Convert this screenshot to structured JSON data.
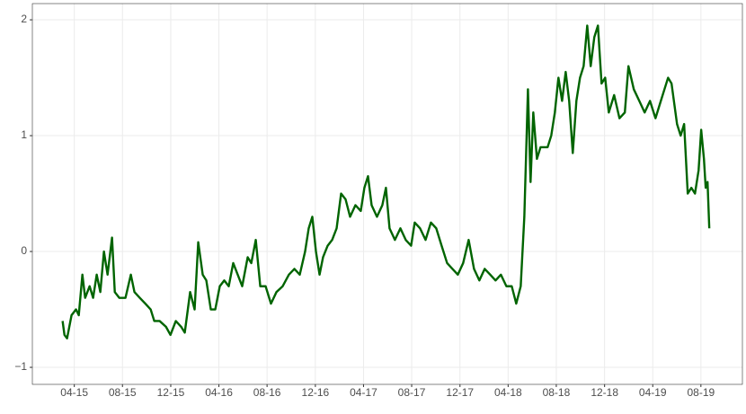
{
  "chart_data": {
    "type": "line",
    "x": [
      2015.169,
      2015.182,
      2015.2,
      2015.231,
      2015.262,
      2015.281,
      2015.306,
      2015.325,
      2015.356,
      2015.38,
      2015.405,
      2015.43,
      2015.455,
      2015.48,
      2015.511,
      2015.53,
      2015.561,
      2015.604,
      2015.641,
      2015.666,
      2015.703,
      2015.741,
      2015.778,
      2015.803,
      2015.84,
      2015.884,
      2015.915,
      2015.952,
      2015.989,
      2016.014,
      2016.051,
      2016.082,
      2016.107,
      2016.138,
      2016.163,
      2016.194,
      2016.225,
      2016.256,
      2016.287,
      2016.318,
      2016.349,
      2016.38,
      2016.411,
      2016.449,
      2016.474,
      2016.505,
      2016.536,
      2016.573,
      2016.61,
      2016.648,
      2016.691,
      2016.734,
      2016.772,
      2016.809,
      2016.846,
      2016.871,
      2016.896,
      2016.921,
      2016.946,
      2016.97,
      2017.002,
      2017.033,
      2017.064,
      2017.095,
      2017.126,
      2017.157,
      2017.194,
      2017.231,
      2017.256,
      2017.281,
      2017.306,
      2017.343,
      2017.38,
      2017.405,
      2017.43,
      2017.467,
      2017.505,
      2017.542,
      2017.579,
      2017.604,
      2017.641,
      2017.679,
      2017.716,
      2017.753,
      2017.79,
      2017.828,
      2017.865,
      2017.902,
      2017.939,
      2017.977,
      2018.014,
      2018.051,
      2018.088,
      2018.126,
      2018.163,
      2018.2,
      2018.238,
      2018.275,
      2018.306,
      2018.337,
      2018.362,
      2018.387,
      2018.405,
      2018.424,
      2018.449,
      2018.474,
      2018.498,
      2018.523,
      2018.548,
      2018.573,
      2018.598,
      2018.623,
      2018.648,
      2018.672,
      2018.697,
      2018.722,
      2018.747,
      2018.772,
      2018.797,
      2018.821,
      2018.846,
      2018.871,
      2018.896,
      2018.921,
      2018.946,
      2018.983,
      2019.02,
      2019.057,
      2019.082,
      2019.119,
      2019.157,
      2019.194,
      2019.231,
      2019.269,
      2019.306,
      2019.331,
      2019.356,
      2019.38,
      2019.418,
      2019.443,
      2019.467,
      2019.492,
      2019.517,
      2019.542,
      2019.567,
      2019.585,
      2019.604,
      2019.616,
      2019.629,
      2019.641
    ],
    "series": [
      {
        "color": "#006400",
        "values": [
          -0.6,
          -0.72,
          -0.75,
          -0.55,
          -0.5,
          -0.55,
          -0.2,
          -0.4,
          -0.3,
          -0.4,
          -0.2,
          -0.35,
          0.0,
          -0.2,
          0.12,
          -0.35,
          -0.4,
          -0.4,
          -0.2,
          -0.35,
          -0.4,
          -0.45,
          -0.5,
          -0.6,
          -0.6,
          -0.65,
          -0.72,
          -0.6,
          -0.65,
          -0.7,
          -0.35,
          -0.5,
          0.08,
          -0.2,
          -0.25,
          -0.5,
          -0.5,
          -0.3,
          -0.25,
          -0.3,
          -0.1,
          -0.2,
          -0.3,
          -0.05,
          -0.1,
          0.1,
          -0.3,
          -0.3,
          -0.45,
          -0.35,
          -0.3,
          -0.2,
          -0.15,
          -0.2,
          0.0,
          0.2,
          0.3,
          0.0,
          -0.2,
          -0.05,
          0.05,
          0.1,
          0.2,
          0.5,
          0.45,
          0.3,
          0.4,
          0.35,
          0.55,
          0.65,
          0.4,
          0.3,
          0.4,
          0.55,
          0.2,
          0.1,
          0.2,
          0.1,
          0.05,
          0.25,
          0.2,
          0.1,
          0.25,
          0.2,
          0.05,
          -0.1,
          -0.15,
          -0.2,
          -0.1,
          0.1,
          -0.15,
          -0.25,
          -0.15,
          -0.2,
          -0.25,
          -0.2,
          -0.3,
          -0.3,
          -0.45,
          -0.3,
          0.3,
          1.4,
          0.6,
          1.2,
          0.8,
          0.9,
          0.9,
          0.9,
          1.0,
          1.2,
          1.5,
          1.3,
          1.55,
          1.3,
          0.85,
          1.3,
          1.5,
          1.6,
          1.95,
          1.6,
          1.85,
          1.95,
          1.45,
          1.5,
          1.2,
          1.35,
          1.15,
          1.2,
          1.6,
          1.4,
          1.3,
          1.2,
          1.3,
          1.15,
          1.3,
          1.4,
          1.5,
          1.45,
          1.1,
          1.0,
          1.1,
          0.5,
          0.55,
          0.5,
          0.7,
          1.05,
          0.8,
          0.55,
          0.6,
          0.2
        ]
      }
    ],
    "xlim": [
      2014.96,
      2019.87
    ],
    "xticks": [
      {
        "value": 2015.25,
        "label": "04-15"
      },
      {
        "value": 2015.583,
        "label": "08-15"
      },
      {
        "value": 2015.917,
        "label": "12-15"
      },
      {
        "value": 2016.25,
        "label": "04-16"
      },
      {
        "value": 2016.583,
        "label": "08-16"
      },
      {
        "value": 2016.917,
        "label": "12-16"
      },
      {
        "value": 2017.25,
        "label": "04-17"
      },
      {
        "value": 2017.583,
        "label": "08-17"
      },
      {
        "value": 2017.917,
        "label": "12-17"
      },
      {
        "value": 2018.25,
        "label": "04-18"
      },
      {
        "value": 2018.583,
        "label": "08-18"
      },
      {
        "value": 2018.917,
        "label": "12-18"
      },
      {
        "value": 2019.25,
        "label": "04-19"
      },
      {
        "value": 2019.583,
        "label": "08-19"
      }
    ],
    "ylim": [
      -1.147,
      2.14
    ],
    "yticks": [
      {
        "value": -1,
        "label": "−1"
      },
      0,
      1,
      2
    ],
    "grid": true
  }
}
